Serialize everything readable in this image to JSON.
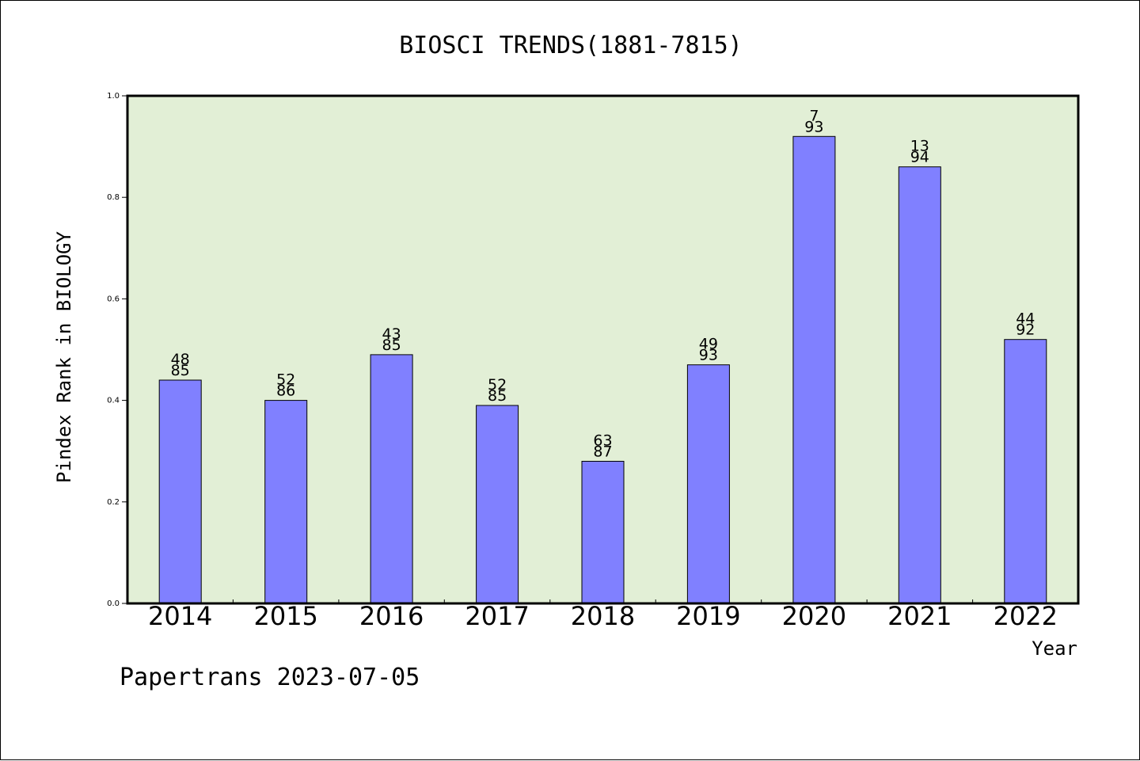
{
  "chart_data": {
    "type": "bar",
    "title": "BIOSCI TRENDS(1881-7815)",
    "xlabel": "Year",
    "ylabel": "Pindex Rank in BIOLOGY",
    "ylim": [
      0,
      1.0
    ],
    "yticks": [
      0.0,
      0.2,
      0.4,
      0.6,
      0.8,
      1.0
    ],
    "ytick_labels": [
      "0.0",
      "0.2",
      "0.4",
      "0.6",
      "0.8",
      "1.0"
    ],
    "categories": [
      "2014",
      "2015",
      "2016",
      "2017",
      "2018",
      "2019",
      "2020",
      "2021",
      "2022"
    ],
    "values": [
      0.44,
      0.4,
      0.49,
      0.39,
      0.28,
      0.47,
      0.92,
      0.86,
      0.52
    ],
    "labels_top": [
      "48",
      "52",
      "43",
      "52",
      "63",
      "49",
      "7",
      "13",
      "44"
    ],
    "labels_bottom": [
      "85",
      "86",
      "85",
      "85",
      "87",
      "93",
      "93",
      "94",
      "92"
    ],
    "grid": false,
    "legend": "none",
    "colors": {
      "bar_fill": "#8080ff",
      "plot_background": "#e2efd6",
      "axis": "#000000"
    }
  },
  "footer": {
    "credit": "Papertrans 2023-07-05"
  }
}
